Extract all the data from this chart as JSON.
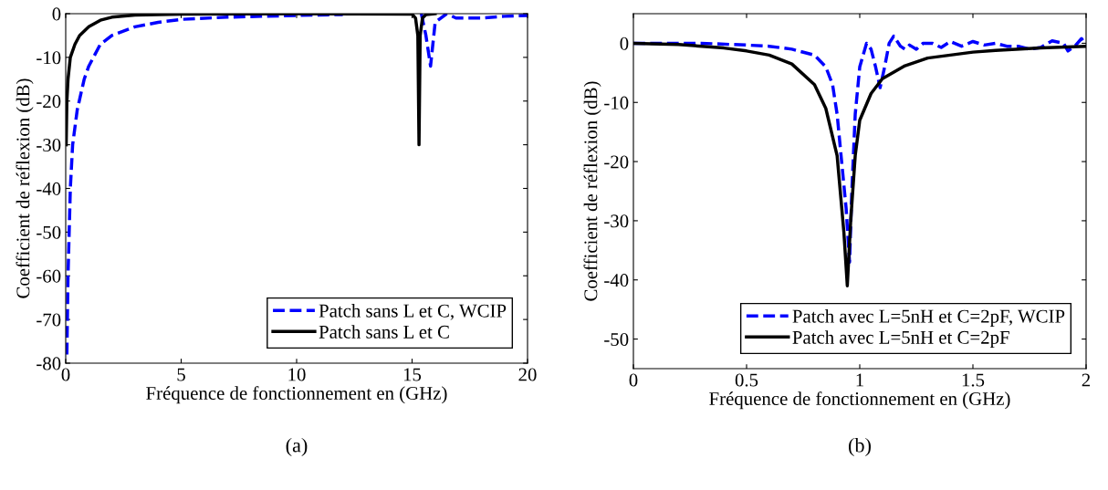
{
  "chart_data": [
    {
      "type": "line",
      "xlabel": "Fréquence de fonctionnement en (GHz)",
      "ylabel": "Coefficient de réflexion (dB)",
      "xlim": [
        0,
        20
      ],
      "xticks": [
        0,
        5,
        10,
        15,
        20
      ],
      "ylim": [
        -80,
        0
      ],
      "yticks": [
        -80,
        -70,
        -60,
        -50,
        -40,
        -30,
        -20,
        -10,
        0
      ],
      "grid": false,
      "legend": "bottom right",
      "annotations": [
        "(a)"
      ],
      "series": [
        {
          "name": "Patch sans L et C, WCIP",
          "color": "#0000ff",
          "line_style": "dashed",
          "x": [
            0.05,
            0.1,
            0.2,
            0.3,
            0.5,
            0.8,
            1,
            1.5,
            2,
            3,
            4,
            5,
            7,
            10,
            12,
            14,
            15.4,
            15.6,
            15.8,
            16,
            16.5,
            16.9,
            18,
            19,
            20
          ],
          "values": [
            -78,
            -60,
            -40,
            -30,
            -22,
            -15,
            -12,
            -7,
            -5,
            -3,
            -2,
            -1.3,
            -0.8,
            -0.4,
            -0.2,
            null,
            0,
            -5,
            -12,
            -2,
            0,
            -1,
            -1,
            -0.6,
            -0.4
          ]
        },
        {
          "name": "Patch sans L et C",
          "color": "#000000",
          "line_style": "solid",
          "x": [
            0.02,
            0.05,
            0.1,
            0.2,
            0.4,
            0.6,
            1,
            1.5,
            2,
            3,
            5,
            10,
            15,
            15.15,
            15.25,
            15.3,
            15.35,
            15.45,
            15.6,
            16
          ],
          "values": [
            -30,
            -20,
            -15,
            -10,
            -7,
            -5,
            -3,
            -1.5,
            -0.8,
            -0.3,
            -0.1,
            0,
            -0.1,
            -1,
            -5,
            -30,
            -5,
            -1,
            -0.2,
            0
          ]
        }
      ]
    },
    {
      "type": "line",
      "xlabel": "Fréquence de fonctionnement en (GHz)",
      "ylabel": "Coefficient de réflexion (dB)",
      "xlim": [
        0,
        2
      ],
      "xticks": [
        0,
        0.5,
        1,
        1.5,
        2
      ],
      "ylim": [
        -55,
        5
      ],
      "yticks": [
        -50,
        -40,
        -30,
        -20,
        -10,
        0
      ],
      "grid": false,
      "legend": "bottom right",
      "annotations": [
        "(b)"
      ],
      "series": [
        {
          "name": "Patch avec L=5nH et C=2pF, WCIP",
          "color": "#0000ff",
          "line_style": "dashed",
          "x": [
            0,
            0.3,
            0.5,
            0.6,
            0.7,
            0.8,
            0.85,
            0.88,
            0.9,
            0.92,
            0.94,
            0.955,
            0.965,
            0.98,
            1.0,
            1.03,
            1.05,
            1.07,
            1.09,
            1.11,
            1.13,
            1.15,
            1.18,
            1.2,
            1.22,
            1.25,
            1.28,
            1.32,
            1.36,
            1.4,
            1.45,
            1.5,
            1.55,
            1.6,
            1.65,
            1.7,
            1.75,
            1.8,
            1.85,
            1.9,
            1.92,
            1.95,
            1.98,
            2
          ],
          "values": [
            0,
            0,
            -0.3,
            -0.5,
            -1,
            -2,
            -4,
            -7,
            -12,
            -20,
            -28,
            -37,
            -25,
            -12,
            -4,
            0,
            -1,
            -4,
            -7.5,
            -4,
            0,
            1.2,
            -0.5,
            -1,
            -0.3,
            -1,
            0,
            0,
            -0.7,
            0.3,
            -0.5,
            0.3,
            -0.3,
            0,
            -0.5,
            -0.5,
            -1,
            -0.7,
            0.4,
            0,
            -1.3,
            -0.5,
            0.8,
            -0.3
          ]
        },
        {
          "name": "Patch avec L=5nH et C=2pF",
          "color": "#000000",
          "line_style": "solid",
          "x": [
            0,
            0.2,
            0.4,
            0.5,
            0.6,
            0.7,
            0.8,
            0.85,
            0.9,
            0.93,
            0.945,
            0.96,
            0.98,
            1.0,
            1.05,
            1.1,
            1.2,
            1.3,
            1.4,
            1.5,
            1.6,
            1.8,
            2
          ],
          "values": [
            0,
            -0.2,
            -0.8,
            -1.3,
            -2,
            -3.5,
            -7,
            -11,
            -19,
            -32,
            -41,
            -30,
            -19,
            -13,
            -8.5,
            -6,
            -3.8,
            -2.5,
            -2,
            -1.5,
            -1.2,
            -0.8,
            -0.5
          ]
        }
      ]
    }
  ]
}
